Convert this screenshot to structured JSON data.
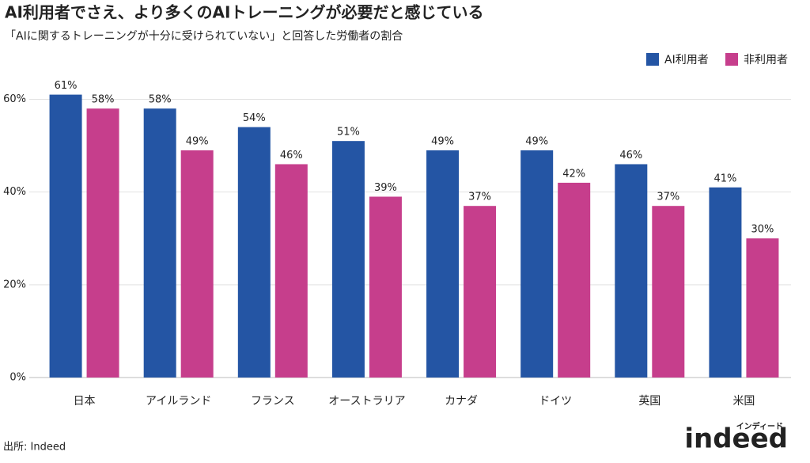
{
  "chart_data": {
    "type": "bar",
    "title": "AI利用者でさえ、より多くのAIトレーニングが必要だと感じている",
    "subtitle": "「AIに関するトレーニングが十分に受けられていない」と回答した労働者の割合",
    "categories": [
      "日本",
      "アイルランド",
      "フランス",
      "オーストラリア",
      "カナダ",
      "ドイツ",
      "英国",
      "米国"
    ],
    "series": [
      {
        "name": "AI利用者",
        "color": "#2455a4",
        "values": [
          61,
          58,
          54,
          51,
          49,
          49,
          46,
          41
        ],
        "value_labels": [
          "61%",
          "58%",
          "54%",
          "51%",
          "49%",
          "49%",
          "46%",
          "41%"
        ]
      },
      {
        "name": "非利用者",
        "color": "#c63e8c",
        "values": [
          58,
          49,
          46,
          39,
          37,
          42,
          37,
          30
        ],
        "value_labels": [
          "58%",
          "49%",
          "46%",
          "39%",
          "37%",
          "42%",
          "37%",
          "30%"
        ]
      }
    ],
    "ylim": [
      0,
      64
    ],
    "yticks": [
      {
        "value": 0,
        "label": "0%"
      },
      {
        "value": 20,
        "label": "20%"
      },
      {
        "value": 40,
        "label": "40%"
      },
      {
        "value": 60,
        "label": "60%"
      }
    ],
    "grid": true,
    "legend": "top-right",
    "source": "出所: Indeed",
    "logo": {
      "text": "indeed",
      "subtext": "インディード"
    }
  }
}
